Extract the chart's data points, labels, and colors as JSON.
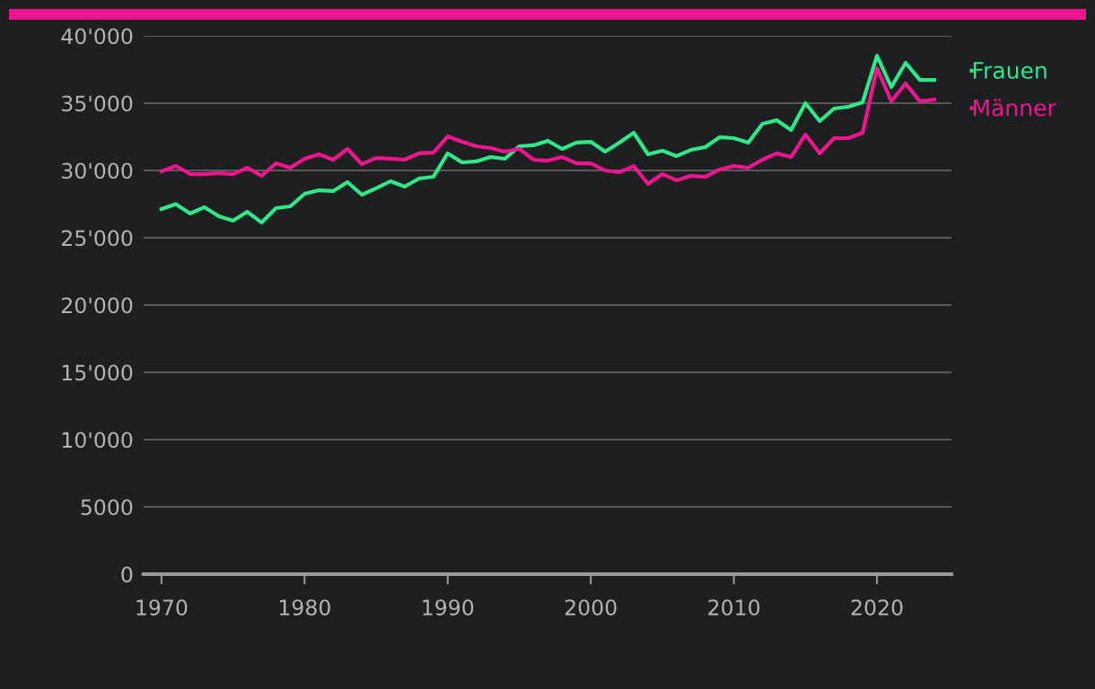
{
  "chart_data": {
    "type": "line",
    "x": [
      1970,
      1971,
      1972,
      1973,
      1974,
      1975,
      1976,
      1977,
      1978,
      1979,
      1980,
      1981,
      1982,
      1983,
      1984,
      1985,
      1986,
      1987,
      1988,
      1989,
      1990,
      1991,
      1992,
      1993,
      1994,
      1995,
      1996,
      1997,
      1998,
      1999,
      2000,
      2001,
      2002,
      2003,
      2004,
      2005,
      2006,
      2007,
      2008,
      2009,
      2010,
      2011,
      2012,
      2013,
      2014,
      2015,
      2016,
      2017,
      2018,
      2019,
      2020,
      2021,
      2022,
      2023,
      2024
    ],
    "series": [
      {
        "name": "Frauen",
        "color": "#2ee88a",
        "values": [
          27130,
          27500,
          26800,
          27270,
          26600,
          26270,
          26930,
          26130,
          27200,
          27330,
          28270,
          28530,
          28470,
          29130,
          28200,
          28670,
          29200,
          28800,
          29400,
          29530,
          31270,
          30600,
          30670,
          31000,
          30870,
          31800,
          31870,
          32200,
          31600,
          32070,
          32130,
          31400,
          32070,
          32800,
          31200,
          31470,
          31070,
          31530,
          31730,
          32470,
          32400,
          32070,
          33470,
          33730,
          33000,
          35000,
          33670,
          34600,
          34730,
          35070,
          38530,
          36200,
          38000,
          36730,
          36730
        ]
      },
      {
        "name": "Männer",
        "color": "#f0158f",
        "values": [
          29930,
          30330,
          29730,
          29730,
          29800,
          29730,
          30200,
          29600,
          30530,
          30200,
          30870,
          31200,
          30800,
          31600,
          30470,
          30930,
          30870,
          30800,
          31270,
          31330,
          32530,
          32130,
          31800,
          31670,
          31400,
          31600,
          30800,
          30730,
          31000,
          30530,
          30530,
          30000,
          29870,
          30330,
          29000,
          29730,
          29270,
          29600,
          29530,
          30070,
          30330,
          30200,
          30800,
          31270,
          31000,
          32670,
          31270,
          32400,
          32400,
          32800,
          37600,
          35130,
          36470,
          35130,
          35270
        ]
      }
    ],
    "xlim": [
      1968.75,
      2025.2
    ],
    "xticks": [
      1970,
      1980,
      1990,
      2000,
      2010,
      2020
    ],
    "ylim": [
      0,
      40000
    ],
    "yticks": [
      0,
      {
        "value": 5000,
        "label": "5000"
      },
      {
        "value": 10000,
        "label": "10'000"
      },
      {
        "value": 15000,
        "label": "15'000"
      },
      {
        "value": 20000,
        "label": "20'000"
      },
      {
        "value": 25000,
        "label": "25'000"
      },
      {
        "value": 30000,
        "label": "30'000"
      },
      {
        "value": 35000,
        "label": "35'000"
      },
      {
        "value": 40000,
        "label": "40'000"
      }
    ],
    "grid": "y",
    "legend": "top right",
    "marker": "none",
    "line_style": "solid"
  }
}
